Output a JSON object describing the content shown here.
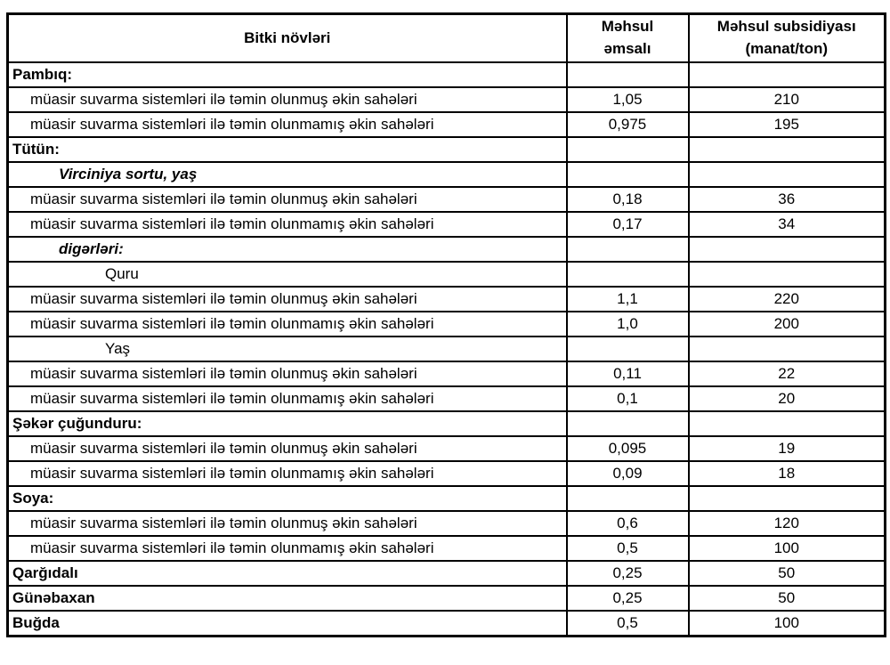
{
  "table": {
    "headers": [
      "Bitki növləri",
      "Məhsul\nəmsalı",
      "Məhsul subsidiyası\n(manat/ton)"
    ],
    "rows": [
      {
        "label": "Pambıq:",
        "coef": "",
        "sub": "",
        "style": "section"
      },
      {
        "label": "müasir suvarma sistemləri ilə təmin olunmuş əkin sahələri",
        "coef": "1,05",
        "sub": "210",
        "style": "item"
      },
      {
        "label": "müasir suvarma sistemləri ilə təmin olunmamış əkin sahələri",
        "coef": "0,975",
        "sub": "195",
        "style": "item"
      },
      {
        "label": "Tütün:",
        "coef": "",
        "sub": "",
        "style": "section"
      },
      {
        "label": "Virciniya sortu, yaş",
        "coef": "",
        "sub": "",
        "style": "variety"
      },
      {
        "label": "müasir suvarma sistemləri ilə təmin olunmuş əkin sahələri",
        "coef": "0,18",
        "sub": "36",
        "style": "item"
      },
      {
        "label": "müasir suvarma sistemləri ilə təmin olunmamış əkin sahələri",
        "coef": "0,17",
        "sub": "34",
        "style": "item"
      },
      {
        "label": "digərləri:",
        "coef": "",
        "sub": "",
        "style": "variety"
      },
      {
        "label": "Quru",
        "coef": "",
        "sub": "",
        "style": "state"
      },
      {
        "label": "müasir suvarma sistemləri ilə təmin olunmuş əkin sahələri",
        "coef": "1,1",
        "sub": "220",
        "style": "item"
      },
      {
        "label": "müasir suvarma sistemləri ilə təmin olunmamış əkin sahələri",
        "coef": "1,0",
        "sub": "200",
        "style": "item"
      },
      {
        "label": "Yaş",
        "coef": "",
        "sub": "",
        "style": "state"
      },
      {
        "label": "müasir suvarma sistemləri ilə təmin olunmuş əkin sahələri",
        "coef": "0,11",
        "sub": "22",
        "style": "item"
      },
      {
        "label": "müasir suvarma sistemləri ilə təmin olunmamış əkin sahələri",
        "coef": "0,1",
        "sub": "20",
        "style": "item"
      },
      {
        "label": "Şəkər çuğunduru:",
        "coef": "",
        "sub": "",
        "style": "section"
      },
      {
        "label": "müasir suvarma sistemləri ilə təmin olunmuş əkin sahələri",
        "coef": "0,095",
        "sub": "19",
        "style": "item"
      },
      {
        "label": "müasir suvarma sistemləri ilə təmin olunmamış əkin sahələri",
        "coef": "0,09",
        "sub": "18",
        "style": "item"
      },
      {
        "label": "Soya:",
        "coef": "",
        "sub": "",
        "style": "section"
      },
      {
        "label": "müasir suvarma sistemləri ilə təmin olunmuş əkin sahələri",
        "coef": "0,6",
        "sub": "120",
        "style": "item"
      },
      {
        "label": "müasir suvarma sistemləri ilə təmin olunmamış əkin sahələri",
        "coef": "0,5",
        "sub": "100",
        "style": "item"
      },
      {
        "label": "Qarğıdalı",
        "coef": "0,25",
        "sub": "50",
        "style": "section"
      },
      {
        "label": "Günəbaxan",
        "coef": "0,25",
        "sub": "50",
        "style": "section"
      },
      {
        "label": "Buğda",
        "coef": "0,5",
        "sub": "100",
        "style": "section"
      }
    ]
  }
}
